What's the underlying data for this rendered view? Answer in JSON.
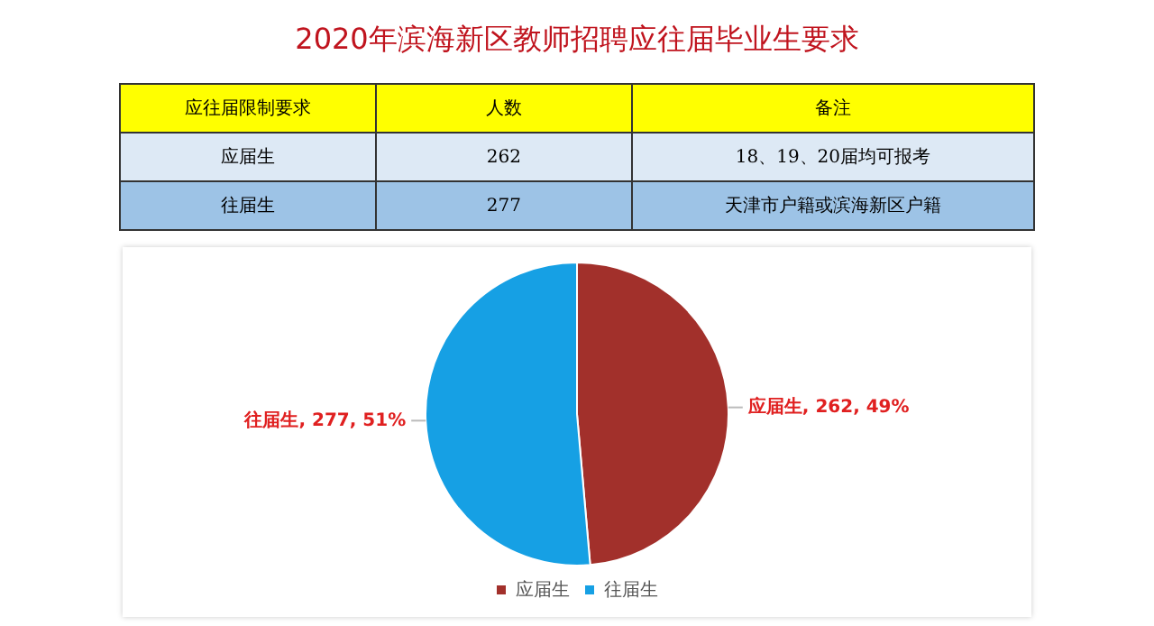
{
  "chart_data": {
    "type": "pie",
    "title": "2020年滨海新区教师招聘应往届毕业生要求",
    "categories": [
      "应届生",
      "往届生"
    ],
    "values": [
      262,
      277
    ],
    "colors": [
      "#a2302b",
      "#16a0e4"
    ],
    "value_labels": [
      "应届生, 262, 49%",
      "往届生, 277, 51%"
    ],
    "legend": "bottom",
    "annotations": [
      "应往届限制要求",
      "人数",
      "备注",
      "应届生",
      "262",
      "18、19、20届均可报考",
      "往届生",
      "277",
      "天津市户籍或滨海新区户籍"
    ]
  }
}
